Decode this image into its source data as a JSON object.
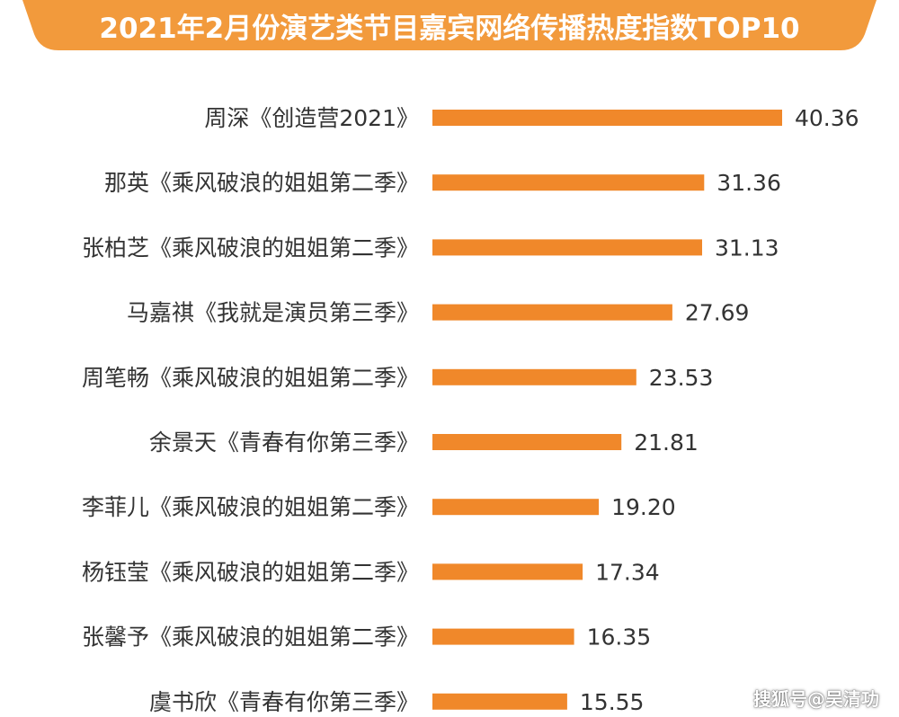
{
  "chart_data": {
    "type": "bar",
    "orientation": "horizontal",
    "title": "2021年2月份演艺类节目嘉宾网络传播热度指数TOP10",
    "categories": [
      "周深《创造营2021》",
      "那英《乘风破浪的姐姐第二季》",
      "张柏芝《乘风破浪的姐姐第二季》",
      "马嘉祺《我就是演员第三季》",
      "周笔畅《乘风破浪的姐姐第二季》",
      "余景天《青春有你第三季》",
      "李菲儿《乘风破浪的姐姐第二季》",
      "杨钰莹《乘风破浪的姐姐第二季》",
      "张馨予《乘风破浪的姐姐第二季》",
      "虞书欣《青春有你第三季》"
    ],
    "values": [
      40.36,
      31.36,
      31.13,
      27.69,
      23.53,
      21.81,
      19.2,
      17.34,
      16.35,
      15.55
    ],
    "value_labels": [
      "40.36",
      "31.36",
      "31.13",
      "27.69",
      "23.53",
      "21.81",
      "19.20",
      "17.34",
      "16.35",
      "15.55"
    ],
    "xlabel": "",
    "ylabel": "",
    "xlim": [
      0,
      40.36
    ],
    "grid": false,
    "legend": "none",
    "bar_color": "#f0882a",
    "banner_color": "#f29a3c"
  },
  "watermark": "搜狐号@吴清功"
}
